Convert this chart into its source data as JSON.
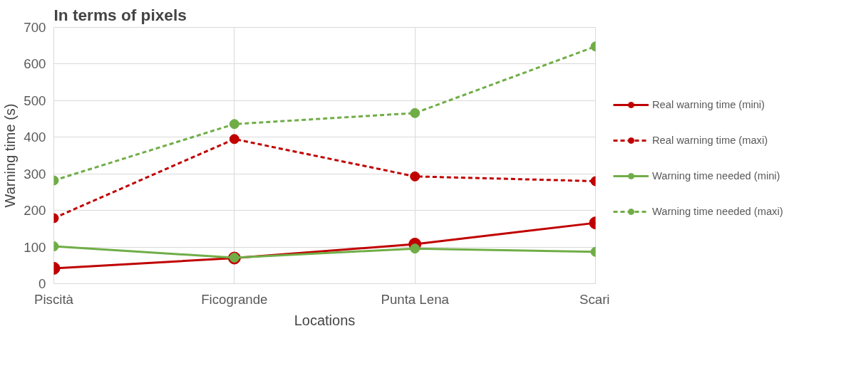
{
  "chart_data": {
    "type": "line",
    "title": "In terms of pixels",
    "xlabel": "Locations",
    "ylabel": "Warning time (s)",
    "categories": [
      "Piscità",
      "Ficogrande",
      "Punta Lena",
      "Scari"
    ],
    "series": [
      {
        "name": "Real warning time (mini)",
        "color": "#c00000",
        "line_style": "solid",
        "values": [
          42,
          70,
          108,
          166
        ]
      },
      {
        "name": "Real warning time (maxi)",
        "color": "#c00000",
        "line_style": "dashed",
        "values": [
          179,
          395,
          293,
          280
        ]
      },
      {
        "name": "Warning time needed (mini)",
        "color": "#70ad47",
        "line_style": "solid",
        "values": [
          102,
          71,
          96,
          87
        ]
      },
      {
        "name": "Warning time needed (maxi)",
        "color": "#70ad47",
        "line_style": "dashed",
        "values": [
          282,
          436,
          466,
          648
        ]
      }
    ],
    "ylim": [
      0,
      700
    ],
    "yticks": [
      0,
      100,
      200,
      300,
      400,
      500,
      600,
      700
    ],
    "grid": true,
    "legend": "right",
    "marker": "circle"
  }
}
